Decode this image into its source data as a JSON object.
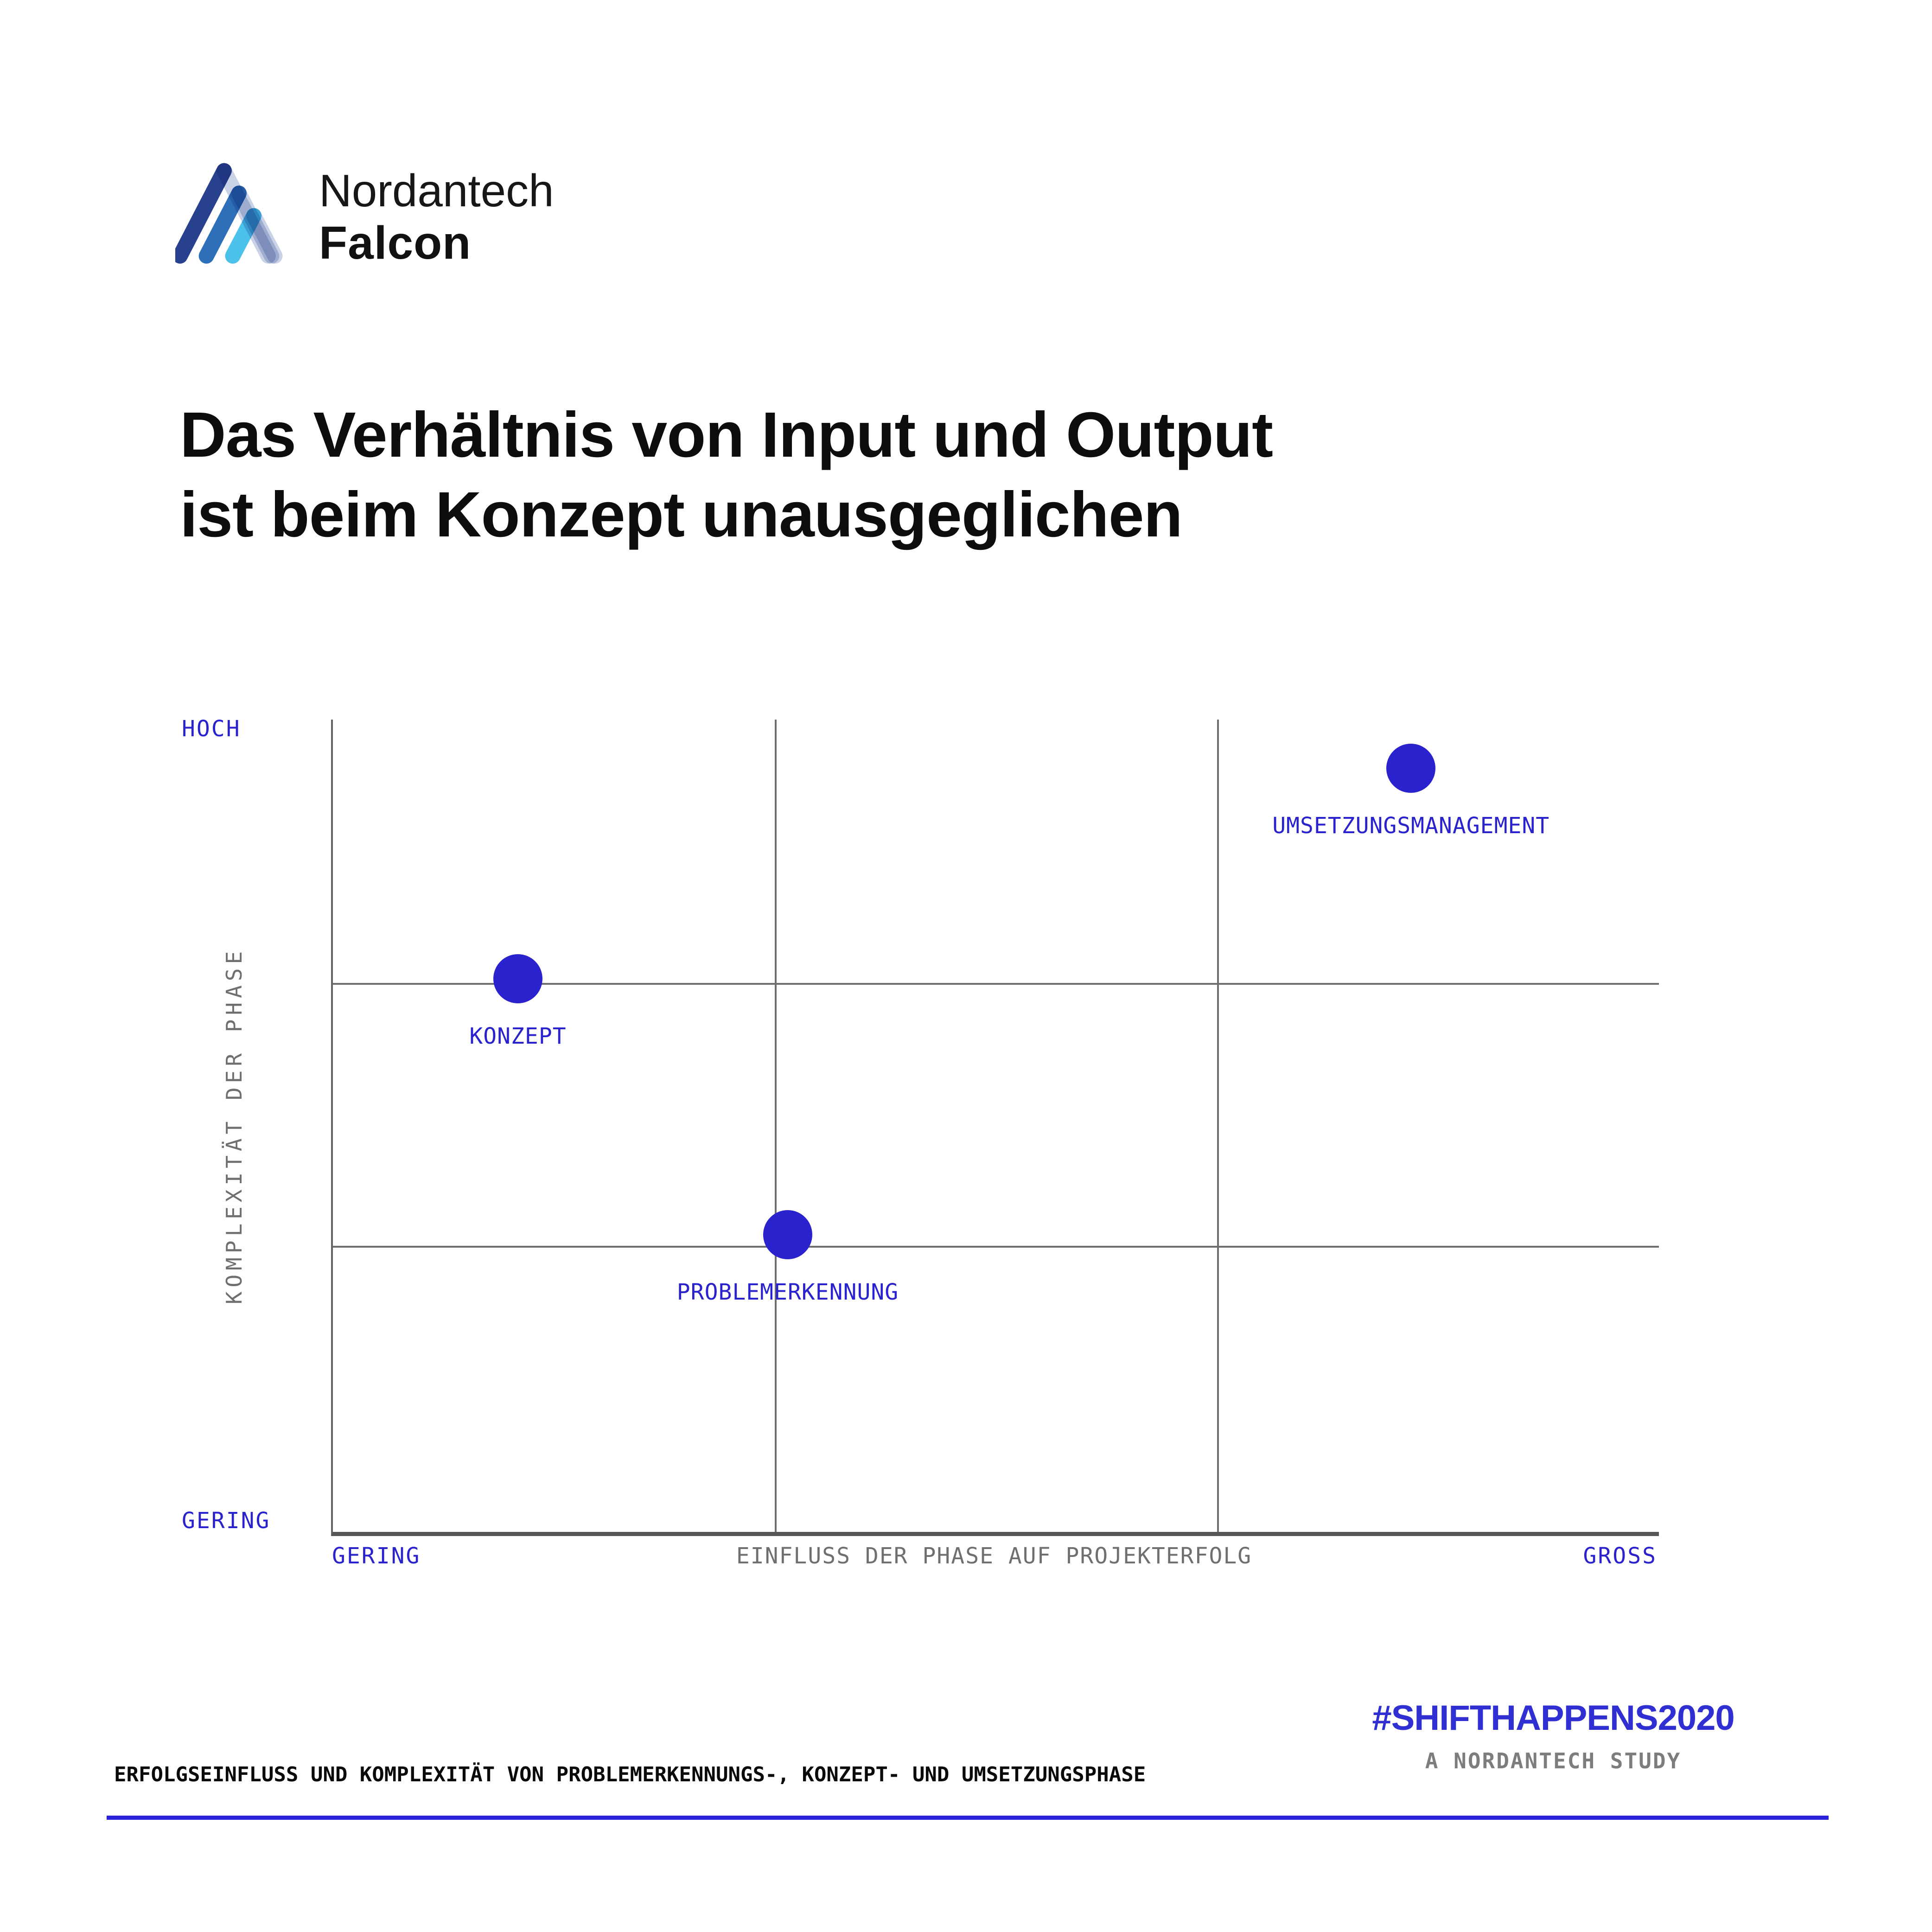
{
  "logo": {
    "brand_line1": "Nordantech",
    "brand_line2": "Falcon",
    "mark_colors": {
      "navy": "#28418f",
      "medium_blue": "#2e6fba",
      "sky_blue": "#4cc1e9",
      "pale_blue": "#c9d2e6"
    }
  },
  "title": {
    "line1": "Das Verhältnis von Input und Output",
    "line2": "ist beim Konzept unausgeglichen"
  },
  "chart_data": {
    "type": "scatter",
    "title": "Das Verhältnis von Input und Output ist beim Konzept unausgeglichen",
    "grid": "3x3",
    "x_axis": {
      "label": "EINFLUSS DER PHASE AUF PROJEKTERFOLG",
      "min_label": "GERING",
      "max_label": "GROSS",
      "range": [
        0,
        1
      ]
    },
    "y_axis": {
      "label": "KOMPLEXITÄT DER PHASE",
      "min_label": "GERING",
      "max_label": "HOCH",
      "range": [
        0,
        1
      ]
    },
    "dot_color": "#2922cd",
    "label_color": "#2922cd",
    "points": [
      {
        "label": "UMSETZUNGSMANAGEMENT",
        "x": 0.81,
        "y": 0.94,
        "x_pct": 81.3,
        "y_pct": 6.0
      },
      {
        "label": "KONZEPT",
        "x": 0.14,
        "y": 0.68,
        "x_pct": 13.95,
        "y_pct": 31.9
      },
      {
        "label": "PROBLEMERKENNUNG",
        "x": 0.34,
        "y": 0.37,
        "x_pct": 34.3,
        "y_pct": 63.4
      }
    ]
  },
  "footer": {
    "caption": "ERFOLGSEINFLUSS UND KOMPLEXITÄT VON PROBLEMERKENNUNGS-, KONZEPT- UND UMSETZUNGSPHASE",
    "hashtag": "#SHIFTHAPPENS2020",
    "study": "A NORDANTECH STUDY",
    "accent_line_color": "#2b22db"
  }
}
